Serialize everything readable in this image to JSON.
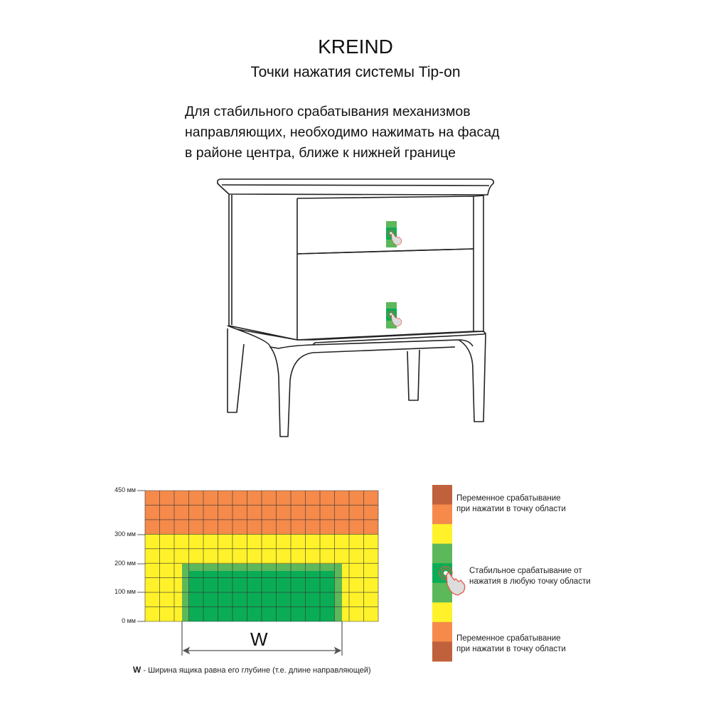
{
  "header": {
    "brand": "KREIND",
    "subtitle": "Точки нажатия системы Tip-on"
  },
  "instruction": [
    "Для стабильного срабатывания механизмов",
    "направляющих, необходимо нажимать на фасад",
    "в районе центра, ближе к нижней границе"
  ],
  "zone_diagram": {
    "y_labels": [
      "450 мм",
      "300 мм",
      "200 мм",
      "100 мм",
      "0 мм"
    ],
    "colors": {
      "orange": "#f58a4b",
      "yellow": "#fff22a",
      "green_light": "#5cb85a",
      "green_dark": "#0aad55",
      "brown": "#c0613d"
    },
    "dimension_letter": "W",
    "note_letter": "W",
    "note_text": " - Ширина ящика равна его глубине (т.е. длине направляющей)"
  },
  "legend": {
    "variable_top": [
      "Переменное срабатывание",
      "при нажатии в точку области"
    ],
    "stable": [
      "Стабильное срабатывание от",
      "нажатия в любую точку области"
    ],
    "variable_bottom": [
      "Переменное срабатывание",
      "при нажатии в точку области"
    ]
  }
}
